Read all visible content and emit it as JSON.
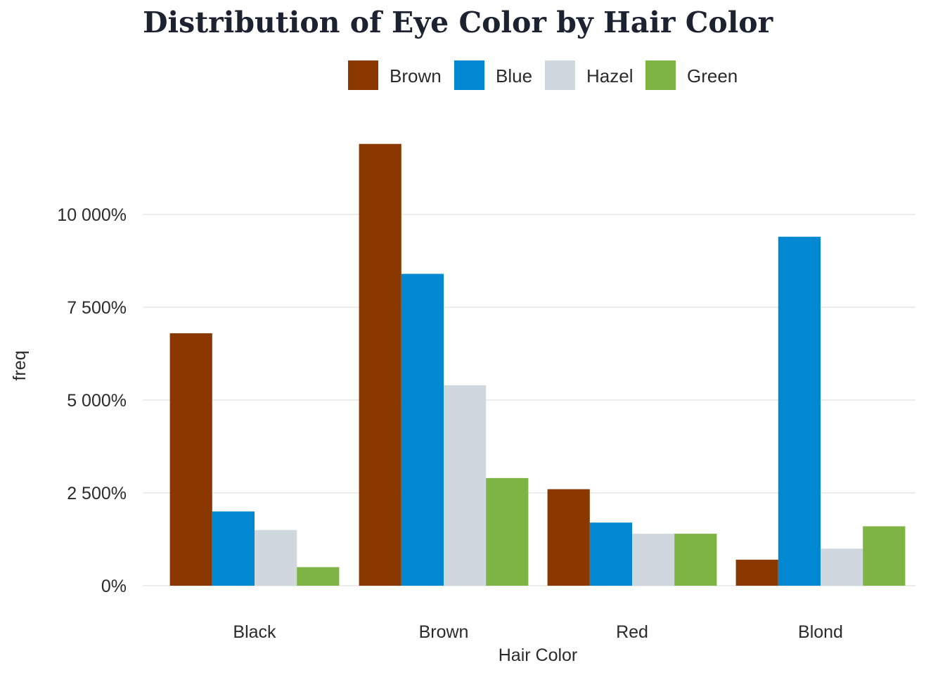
{
  "chart_data": {
    "type": "bar",
    "title": "Distribution of Eye Color by Hair Color",
    "xlabel": "Hair Color",
    "ylabel": "freq",
    "categories": [
      "Black",
      "Brown",
      "Red",
      "Blond"
    ],
    "series": [
      {
        "name": "Brown",
        "color": "#8B3800",
        "values": [
          68,
          119,
          26,
          7
        ]
      },
      {
        "name": "Blue",
        "color": "#0088D2",
        "values": [
          20,
          84,
          17,
          94
        ]
      },
      {
        "name": "Hazel",
        "color": "#D0D8DF",
        "values": [
          15,
          54,
          14,
          10
        ]
      },
      {
        "name": "Green",
        "color": "#7DB443",
        "values": [
          5,
          29,
          14,
          16
        ]
      }
    ],
    "ylim": [
      0,
      120
    ],
    "yticks": [
      0,
      25,
      50,
      75,
      100
    ],
    "ytick_labels": [
      "0%",
      "2 500%",
      "5 000%",
      "7 500%",
      "10 000%"
    ],
    "grid": true,
    "legend_position": "top"
  }
}
